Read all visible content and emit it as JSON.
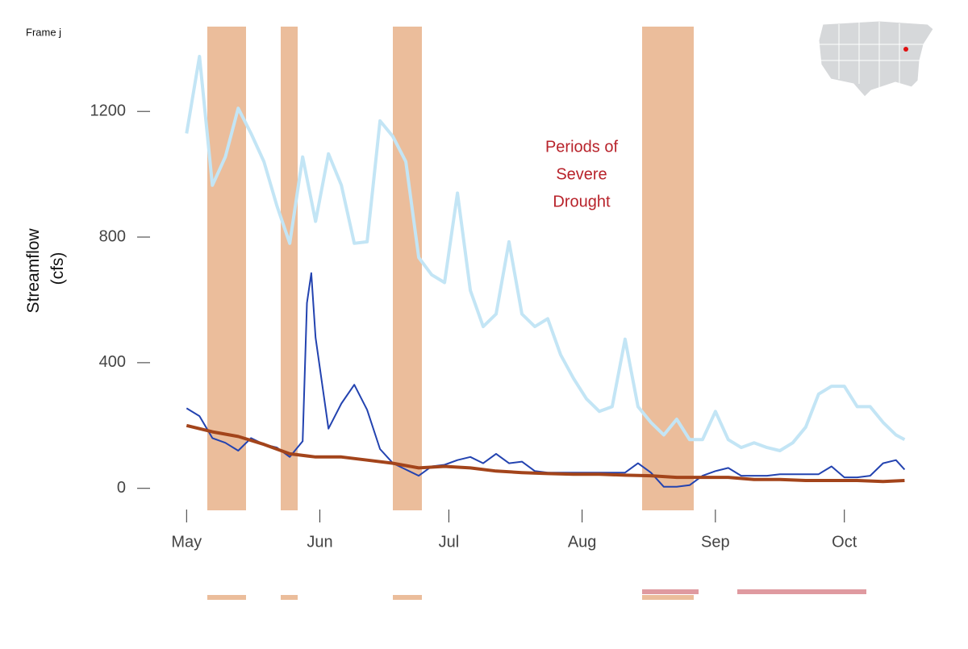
{
  "chart_data": {
    "type": "line",
    "title": "Frame j",
    "ylabel": [
      "Streamflow",
      "(cfs)"
    ],
    "annotation": [
      "Periods of",
      "Severe",
      "Drought"
    ],
    "xlim": [
      -10,
      175
    ],
    "xticks": [
      {
        "value": 0,
        "label": "May"
      },
      {
        "value": 31,
        "label": "Jun"
      },
      {
        "value": 61,
        "label": "Jul"
      },
      {
        "value": 92,
        "label": "Aug"
      },
      {
        "value": 123,
        "label": "Sep"
      },
      {
        "value": 153,
        "label": "Oct"
      }
    ],
    "ylim": [
      -70,
      1470
    ],
    "yticks": [
      0,
      400,
      800,
      1200
    ],
    "grid": false,
    "series": [
      {
        "color": "#c3e5f5",
        "width": 4,
        "x": [
          0,
          3,
          6,
          9,
          12,
          15,
          18,
          21,
          24,
          27,
          30,
          33,
          36,
          39,
          42,
          45,
          48,
          51,
          54,
          57,
          60,
          63,
          66,
          69,
          72,
          75,
          78,
          81,
          84,
          87,
          90,
          93,
          96,
          99,
          102,
          105,
          108,
          111,
          114,
          117,
          120,
          123,
          126,
          129,
          132,
          135,
          138,
          141,
          144,
          147,
          150,
          153,
          156,
          159,
          162,
          165,
          167
        ],
        "values": [
          1130,
          1375,
          965,
          1055,
          1210,
          1130,
          1040,
          900,
          780,
          1055,
          850,
          1065,
          965,
          780,
          785,
          1170,
          1120,
          1040,
          735,
          680,
          655,
          940,
          630,
          515,
          555,
          785,
          555,
          515,
          540,
          425,
          350,
          285,
          245,
          260,
          475,
          260,
          210,
          170,
          220,
          155,
          155,
          245,
          155,
          130,
          145,
          130,
          120,
          145,
          195,
          300,
          325,
          325,
          260,
          260,
          210,
          170,
          155
        ]
      },
      {
        "color": "#2343b0",
        "width": 2,
        "x": [
          0,
          3,
          6,
          9,
          12,
          15,
          18,
          21,
          24,
          27,
          28,
          29,
          30,
          33,
          36,
          39,
          42,
          45,
          48,
          51,
          54,
          57,
          60,
          63,
          66,
          69,
          72,
          75,
          78,
          81,
          84,
          90,
          96,
          102,
          105,
          108,
          111,
          114,
          117,
          120,
          123,
          126,
          129,
          132,
          135,
          138,
          141,
          144,
          147,
          150,
          153,
          156,
          159,
          162,
          165,
          167
        ],
        "values": [
          255,
          230,
          160,
          145,
          120,
          160,
          140,
          130,
          100,
          150,
          590,
          685,
          480,
          190,
          270,
          330,
          250,
          125,
          80,
          60,
          40,
          70,
          75,
          90,
          100,
          80,
          110,
          80,
          85,
          55,
          50,
          50,
          50,
          50,
          80,
          50,
          5,
          5,
          10,
          40,
          55,
          65,
          40,
          40,
          40,
          45,
          45,
          45,
          45,
          70,
          35,
          35,
          40,
          80,
          90,
          60
        ]
      },
      {
        "color": "#a3441b",
        "width": 4,
        "x": [
          0,
          6,
          12,
          18,
          24,
          30,
          36,
          42,
          48,
          54,
          60,
          66,
          72,
          78,
          84,
          90,
          96,
          102,
          108,
          114,
          120,
          126,
          132,
          138,
          144,
          150,
          156,
          162,
          167
        ],
        "values": [
          200,
          180,
          165,
          140,
          110,
          100,
          100,
          90,
          80,
          65,
          70,
          65,
          55,
          50,
          47,
          45,
          45,
          42,
          40,
          35,
          35,
          35,
          28,
          28,
          25,
          25,
          25,
          22,
          25
        ]
      }
    ]
  }
}
